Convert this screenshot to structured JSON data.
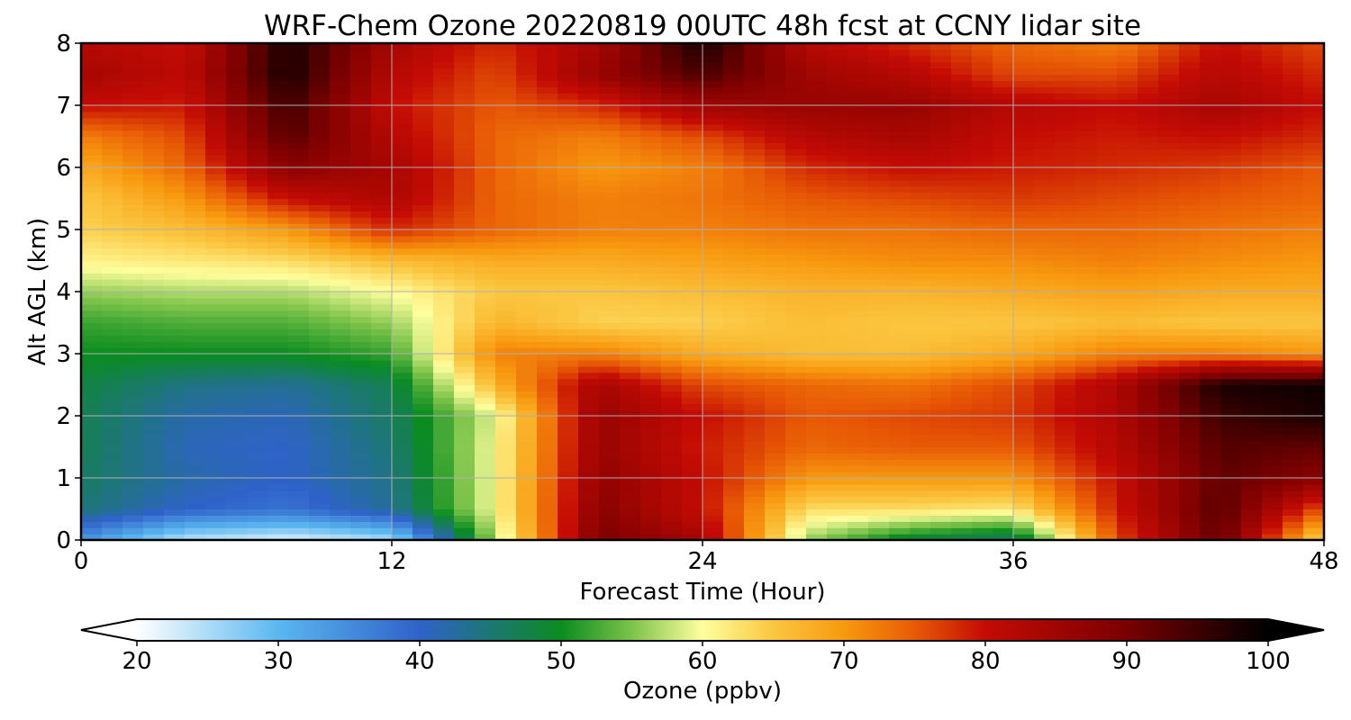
{
  "chart_data": {
    "type": "heatmap",
    "title": "WRF-Chem Ozone  20220819 00UTC 48h fcst at CCNY lidar site",
    "xlabel": "Forecast Time (Hour)",
    "ylabel": "Alt AGL (km)",
    "xlim": [
      0,
      48
    ],
    "ylim": [
      0,
      8
    ],
    "x_ticks": [
      0,
      12,
      24,
      36,
      48
    ],
    "y_ticks": [
      0,
      1,
      2,
      3,
      4,
      5,
      6,
      7,
      8
    ],
    "grid": true,
    "x": [
      0,
      4,
      8,
      12,
      16,
      20,
      24,
      28,
      32,
      36,
      40,
      44,
      48
    ],
    "y": [
      0,
      0.5,
      1,
      1.5,
      2,
      2.5,
      3,
      3.5,
      4,
      4.5,
      5,
      5.5,
      6,
      6.5,
      7,
      7.5,
      8
    ],
    "z": [
      [
        34,
        24,
        22,
        25,
        57,
        90,
        84,
        56,
        48,
        45,
        76,
        92,
        62
      ],
      [
        45,
        40,
        38,
        43,
        60,
        88,
        80,
        63,
        63,
        62,
        79,
        93,
        75
      ],
      [
        46,
        42,
        40,
        44,
        60,
        87,
        80,
        70,
        70,
        70,
        80,
        92,
        88
      ],
      [
        47,
        41,
        40,
        45,
        60,
        86,
        79,
        74,
        75,
        75,
        82,
        93,
        92
      ],
      [
        47,
        42,
        41,
        46,
        59,
        86,
        80,
        75,
        76,
        77,
        83,
        95,
        98
      ],
      [
        48,
        44,
        43,
        47,
        67,
        84,
        76,
        74,
        73,
        76,
        83,
        98,
        99
      ],
      [
        50,
        50,
        50,
        52,
        72,
        72,
        68,
        66,
        66,
        68,
        72,
        72,
        70
      ],
      [
        52,
        53,
        53,
        56,
        67,
        64,
        64,
        66,
        65,
        65,
        66,
        65,
        65
      ],
      [
        56,
        57,
        57,
        60,
        65,
        65,
        66,
        67,
        67,
        68,
        69,
        68,
        68
      ],
      [
        61,
        62,
        63,
        66,
        68,
        68,
        69,
        70,
        71,
        71,
        72,
        71,
        70
      ],
      [
        64,
        66,
        70,
        78,
        74,
        72,
        72,
        73,
        73,
        74,
        74,
        73,
        72
      ],
      [
        65,
        70,
        80,
        83,
        74,
        72,
        73,
        75,
        76,
        77,
        76,
        75,
        74
      ],
      [
        68,
        74,
        88,
        84,
        74,
        70,
        72,
        78,
        80,
        79,
        78,
        77,
        75
      ],
      [
        72,
        76,
        93,
        82,
        74,
        72,
        76,
        82,
        84,
        80,
        79,
        80,
        78
      ],
      [
        80,
        79,
        95,
        80,
        75,
        78,
        85,
        86,
        86,
        82,
        80,
        84,
        80
      ],
      [
        84,
        81,
        98,
        82,
        76,
        86,
        94,
        85,
        82,
        76,
        76,
        82,
        78
      ],
      [
        82,
        80,
        98,
        84,
        78,
        84,
        98,
        82,
        78,
        74,
        72,
        80,
        76
      ]
    ],
    "colorbar": {
      "label": "Ozone  (ppbv)",
      "min": 20,
      "max": 100,
      "ticks": [
        20,
        30,
        40,
        50,
        60,
        70,
        80,
        90,
        100
      ],
      "extend": "both",
      "stops": [
        [
          20,
          "#ffffff"
        ],
        [
          30,
          "#5ab7f0"
        ],
        [
          40,
          "#2f62c9"
        ],
        [
          50,
          "#0a8c1f"
        ],
        [
          55,
          "#7cc34a"
        ],
        [
          60,
          "#ffff9e"
        ],
        [
          65,
          "#fbc640"
        ],
        [
          70,
          "#f8990f"
        ],
        [
          75,
          "#e85a05"
        ],
        [
          80,
          "#c40b04"
        ],
        [
          90,
          "#7a0000"
        ],
        [
          100,
          "#000000"
        ]
      ]
    }
  }
}
